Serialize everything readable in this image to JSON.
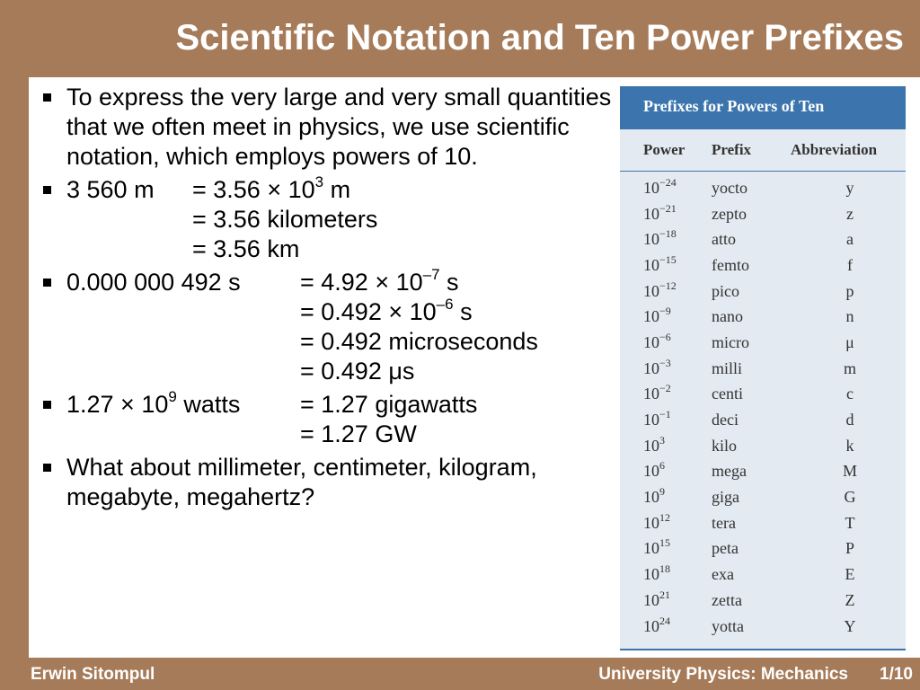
{
  "slide": {
    "title": "Scientific Notation and Ten Power Prefixes"
  },
  "bullets": {
    "b1": "To express the very large and very small quantities that we often meet in physics, we use scientific notation, which employs powers of 10.",
    "b2": {
      "lhs": "3 560 m",
      "r1_pre": "= 3.56 × 10",
      "r1_exp": "3",
      "r1_post": " m",
      "r2": "= 3.56 kilometers",
      "r3": "= 3.56 km"
    },
    "b3": {
      "lhs": "0.000 000 492 s",
      "r1_pre": "= 4.92 × 10",
      "r1_exp": "–7",
      "r1_post": " s",
      "r2_pre": "= 0.492 × 10",
      "r2_exp": "–6",
      "r2_post": " s",
      "r3": "= 0.492 microseconds",
      "r4": "= 0.492 μs"
    },
    "b4": {
      "lhs_pre": "1.27 × 10",
      "lhs_exp": "9",
      "lhs_post": " watts",
      "r1": "= 1.27 gigawatts",
      "r2": "= 1.27 GW"
    },
    "b5": "What about millimeter, centimeter, kilogram, megabyte, megahertz?"
  },
  "table": {
    "title": "Prefixes for Powers of Ten",
    "headers": [
      "Power",
      "Prefix",
      "Abbreviation"
    ],
    "rows": [
      {
        "base": "10",
        "exp": "−24",
        "prefix": "yocto",
        "abbr": "y"
      },
      {
        "base": "10",
        "exp": "−21",
        "prefix": "zepto",
        "abbr": "z"
      },
      {
        "base": "10",
        "exp": "−18",
        "prefix": "atto",
        "abbr": "a"
      },
      {
        "base": "10",
        "exp": "−15",
        "prefix": "femto",
        "abbr": "f"
      },
      {
        "base": "10",
        "exp": "−12",
        "prefix": "pico",
        "abbr": "p"
      },
      {
        "base": "10",
        "exp": "−9",
        "prefix": "nano",
        "abbr": "n"
      },
      {
        "base": "10",
        "exp": "−6",
        "prefix": "micro",
        "abbr": "μ"
      },
      {
        "base": "10",
        "exp": "−3",
        "prefix": "milli",
        "abbr": "m"
      },
      {
        "base": "10",
        "exp": "−2",
        "prefix": "centi",
        "abbr": "c"
      },
      {
        "base": "10",
        "exp": "−1",
        "prefix": "deci",
        "abbr": "d"
      },
      {
        "base": "10",
        "exp": "3",
        "prefix": "kilo",
        "abbr": "k"
      },
      {
        "base": "10",
        "exp": "6",
        "prefix": "mega",
        "abbr": "M"
      },
      {
        "base": "10",
        "exp": "9",
        "prefix": "giga",
        "abbr": "G"
      },
      {
        "base": "10",
        "exp": "12",
        "prefix": "tera",
        "abbr": "T"
      },
      {
        "base": "10",
        "exp": "15",
        "prefix": "peta",
        "abbr": "P"
      },
      {
        "base": "10",
        "exp": "18",
        "prefix": "exa",
        "abbr": "E"
      },
      {
        "base": "10",
        "exp": "21",
        "prefix": "zetta",
        "abbr": "Z"
      },
      {
        "base": "10",
        "exp": "24",
        "prefix": "yotta",
        "abbr": "Y"
      }
    ]
  },
  "footer": {
    "author": "Erwin Sitompul",
    "course": "University Physics: Mechanics",
    "page": "1/10"
  },
  "colors": {
    "background": "#a67b59",
    "table_header": "#3c75ad",
    "table_body": "#e3eaf1"
  }
}
